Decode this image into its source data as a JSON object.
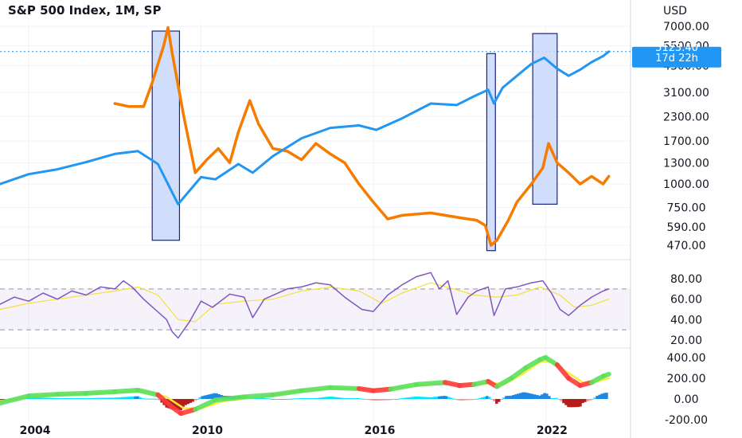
{
  "header": {
    "title": "S&P 500 Index, 1M, SP",
    "currency": "USD"
  },
  "price_badge": {
    "value": "5123.40",
    "countdown": "17d 22h"
  },
  "colors": {
    "sp500": "#2196f3",
    "second_series": "#f57c00",
    "rsi": "#7e57c2",
    "rsi_ma": "#f5e03b",
    "highlight_fill": "#c9d8fa",
    "highlight_stroke": "#1a237e",
    "macd_up": "#5ce05c",
    "macd_down": "#ff3b3b",
    "hist_pos": "#1e88e5",
    "hist_neg": "#b71c1c"
  },
  "chart_data": [
    {
      "type": "line",
      "pane": "price",
      "scale": "log",
      "y_ticks": [
        "7000.00",
        "5500.00",
        "4300.00",
        "3100.00",
        "2300.00",
        "1700.00",
        "1300.00",
        "1000.00",
        "750.00",
        "590.00",
        "470.00"
      ],
      "x_ticks": [
        "2004",
        "2010",
        "2016",
        "2022"
      ],
      "series": [
        {
          "x": [
            2003.0,
            2004.0,
            2005.0,
            2006.0,
            2007.0,
            2007.8,
            2008.5,
            2009.0,
            2009.2,
            2010.0,
            2010.5,
            2011.3,
            2011.8,
            2012.5,
            2013.5,
            2014.5,
            2015.5,
            2016.1,
            2017.0,
            2018.0,
            2018.9,
            2019.5,
            2020.0,
            2020.2,
            2020.5,
            2021.0,
            2021.5,
            2021.95,
            2022.4,
            2022.8,
            2023.2,
            2023.6,
            2024.0,
            2024.2
          ],
          "y": [
            1000,
            1130,
            1200,
            1310,
            1450,
            1500,
            1280,
            900,
            780,
            1090,
            1060,
            1280,
            1150,
            1410,
            1760,
            2000,
            2060,
            1950,
            2250,
            2700,
            2650,
            2950,
            3200,
            2700,
            3280,
            3800,
            4400,
            4750,
            4150,
            3800,
            4100,
            4500,
            4850,
            5123
          ]
        },
        {
          "x": [
            2007.0,
            2007.5,
            2008.0,
            2008.3,
            2008.7,
            2008.85,
            2009.0,
            2009.4,
            2009.8,
            2010.2,
            2010.6,
            2011.0,
            2011.3,
            2011.7,
            2012.0,
            2012.5,
            2013.0,
            2013.5,
            2014.0,
            2014.5,
            2015.0,
            2015.5,
            2016.0,
            2016.5,
            2017.0,
            2018.0,
            2019.0,
            2019.6,
            2019.9,
            2020.1,
            2020.3,
            2020.7,
            2021.0,
            2021.5,
            2021.9,
            2022.1,
            2022.4,
            2022.8,
            2023.2,
            2023.6,
            2024.0,
            2024.2
          ],
          "y": [
            2700,
            2600,
            2600,
            3500,
            5500,
            6900,
            5000,
            2300,
            1150,
            1350,
            1550,
            1300,
            1900,
            2800,
            2100,
            1550,
            1500,
            1350,
            1650,
            1450,
            1300,
            1000,
            800,
            650,
            680,
            700,
            660,
            640,
            600,
            470,
            500,
            640,
            800,
            1000,
            1220,
            1650,
            1300,
            1150,
            1000,
            1100,
            1000,
            1100
          ]
        }
      ],
      "highlights": [
        {
          "x": [
            2008.3,
            2009.25
          ],
          "y": [
            500,
            6600
          ]
        },
        {
          "x": [
            2019.95,
            2020.25
          ],
          "y": [
            440,
            5000
          ]
        },
        {
          "x": [
            2021.55,
            2022.4
          ],
          "y": [
            780,
            6400
          ]
        }
      ],
      "last_price": 5123.4
    },
    {
      "type": "line",
      "pane": "rsi",
      "y_ticks": [
        "80.00",
        "60.00",
        "40.00",
        "20.00"
      ],
      "bands": [
        70,
        30
      ],
      "series": [
        {
          "x": [
            2003.0,
            2003.5,
            2004.0,
            2004.5,
            2005.0,
            2005.5,
            2006.0,
            2006.5,
            2007.0,
            2007.3,
            2007.6,
            2008.0,
            2008.4,
            2008.8,
            2009.0,
            2009.2,
            2009.6,
            2010.0,
            2010.4,
            2011.0,
            2011.5,
            2011.8,
            2012.2,
            2013.0,
            2013.5,
            2014.0,
            2014.5,
            2015.0,
            2015.6,
            2016.0,
            2016.5,
            2017.0,
            2017.5,
            2018.0,
            2018.3,
            2018.6,
            2018.9,
            2019.3,
            2019.6,
            2020.0,
            2020.2,
            2020.6,
            2021.0,
            2021.5,
            2021.9,
            2022.2,
            2022.5,
            2022.8,
            2023.2,
            2023.6,
            2024.0,
            2024.2
          ],
          "y": [
            55,
            62,
            58,
            66,
            60,
            68,
            64,
            72,
            70,
            78,
            72,
            60,
            50,
            40,
            28,
            22,
            38,
            58,
            52,
            65,
            62,
            42,
            60,
            70,
            72,
            76,
            74,
            62,
            50,
            48,
            64,
            74,
            82,
            86,
            70,
            78,
            45,
            62,
            68,
            72,
            44,
            70,
            72,
            76,
            78,
            66,
            50,
            44,
            54,
            62,
            68,
            70
          ]
        },
        {
          "x": [
            2003.0,
            2004.0,
            2005.0,
            2006.0,
            2007.0,
            2007.8,
            2008.5,
            2009.2,
            2009.8,
            2010.5,
            2011.5,
            2012.5,
            2013.5,
            2014.5,
            2015.5,
            2016.3,
            2017.0,
            2018.0,
            2018.8,
            2019.5,
            2020.3,
            2021.0,
            2021.8,
            2022.5,
            2023.0,
            2023.6,
            2024.2
          ],
          "y": [
            50,
            56,
            60,
            64,
            68,
            72,
            64,
            40,
            38,
            55,
            58,
            60,
            68,
            72,
            68,
            56,
            66,
            76,
            70,
            64,
            62,
            64,
            72,
            64,
            52,
            54,
            60
          ]
        }
      ]
    },
    {
      "type": "line",
      "pane": "macd",
      "y_ticks": [
        "400.00",
        "200.00",
        "0.00",
        "-200.00"
      ],
      "series": [
        {
          "x": [
            2003.0,
            2004.0,
            2005.0,
            2006.0,
            2007.0,
            2007.8,
            2008.5,
            2009.0,
            2009.3,
            2009.8,
            2010.5,
            2011.5,
            2012.5,
            2013.5,
            2014.5,
            2015.5,
            2016.0,
            2016.6,
            2017.5,
            2018.5,
            2019.0,
            2019.5,
            2020.0,
            2020.3,
            2020.8,
            2021.3,
            2021.8,
            2022.0,
            2022.4,
            2022.8,
            2023.2,
            2023.6,
            2024.0,
            2024.2
          ],
          "y": [
            -40,
            30,
            45,
            55,
            70,
            85,
            40,
            -80,
            -140,
            -100,
            -10,
            20,
            40,
            80,
            110,
            100,
            80,
            95,
            140,
            160,
            130,
            140,
            170,
            120,
            200,
            300,
            380,
            400,
            330,
            200,
            130,
            160,
            220,
            240
          ]
        },
        {
          "x": [
            2003.0,
            2004.0,
            2005.0,
            2006.0,
            2007.0,
            2008.0,
            2008.8,
            2009.4,
            2010.0,
            2010.8,
            2012.0,
            2013.0,
            2014.0,
            2015.0,
            2016.0,
            2017.0,
            2018.0,
            2019.0,
            2020.0,
            2020.6,
            2021.2,
            2021.8,
            2022.2,
            2022.8,
            2023.3,
            2023.8,
            2024.2
          ],
          "y": [
            -20,
            20,
            40,
            50,
            62,
            70,
            20,
            -90,
            -90,
            -20,
            20,
            60,
            90,
            100,
            90,
            110,
            140,
            140,
            150,
            150,
            240,
            360,
            360,
            250,
            160,
            170,
            200
          ]
        }
      ]
    }
  ]
}
